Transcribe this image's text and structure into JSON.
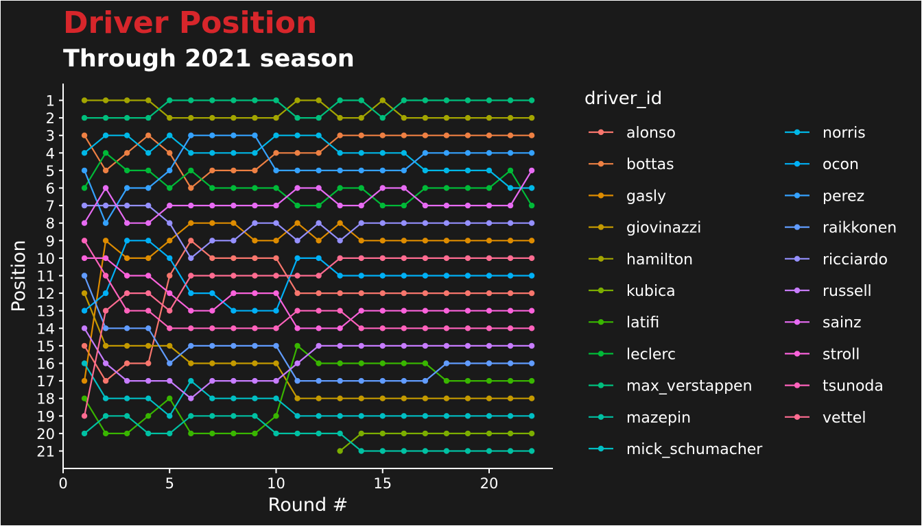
{
  "chart_data": {
    "type": "line",
    "title": "Driver Position",
    "subtitle": "Through 2021 season",
    "xlabel": "Round #",
    "ylabel": "Position",
    "xlim": [
      0,
      23
    ],
    "ylim": [
      21,
      1
    ],
    "x_ticks": [
      0,
      5,
      10,
      15,
      20
    ],
    "y_ticks": [
      1,
      2,
      3,
      4,
      5,
      6,
      7,
      8,
      9,
      10,
      11,
      12,
      13,
      14,
      15,
      16,
      17,
      18,
      19,
      20,
      21
    ],
    "y_reversed": true,
    "grid": false,
    "legend": {
      "title": "driver_id",
      "placement": "right",
      "columns": 2
    },
    "title_color": "#D7262B",
    "series": [
      {
        "name": "alonso",
        "color": "#F8766D",
        "x": [
          1,
          2,
          3,
          4,
          5,
          6,
          7,
          8,
          9,
          10,
          11,
          12,
          13,
          14,
          15,
          16,
          17,
          18,
          19,
          20,
          21,
          22
        ],
        "values": [
          15,
          17,
          16,
          16,
          11,
          9,
          10,
          10,
          10,
          10,
          12,
          12,
          12,
          12,
          12,
          12,
          12,
          12,
          12,
          12,
          12,
          12
        ]
      },
      {
        "name": "bottas",
        "color": "#EE8043",
        "x": [
          1,
          2,
          3,
          4,
          5,
          6,
          7,
          8,
          9,
          10,
          11,
          12,
          13,
          14,
          15,
          16,
          17,
          18,
          19,
          20,
          21,
          22
        ],
        "values": [
          3,
          5,
          4,
          3,
          4,
          6,
          5,
          5,
          5,
          4,
          4,
          4,
          3,
          3,
          3,
          3,
          3,
          3,
          3,
          3,
          3,
          3
        ]
      },
      {
        "name": "gasly",
        "color": "#DE8C00",
        "x": [
          1,
          2,
          3,
          4,
          5,
          6,
          7,
          8,
          9,
          10,
          11,
          12,
          13,
          14,
          15,
          16,
          17,
          18,
          19,
          20,
          21,
          22
        ],
        "values": [
          17,
          9,
          10,
          10,
          9,
          8,
          8,
          8,
          9,
          9,
          8,
          9,
          8,
          9,
          9,
          9,
          9,
          9,
          9,
          9,
          9,
          9
        ]
      },
      {
        "name": "giovinazzi",
        "color": "#C49A00",
        "x": [
          1,
          2,
          3,
          4,
          5,
          6,
          7,
          8,
          9,
          10,
          11,
          12,
          13,
          14,
          15,
          16,
          17,
          18,
          19,
          20,
          21,
          22
        ],
        "values": [
          12,
          15,
          15,
          15,
          15,
          16,
          16,
          16,
          16,
          16,
          18,
          18,
          18,
          18,
          18,
          18,
          18,
          18,
          18,
          18,
          18,
          18
        ]
      },
      {
        "name": "hamilton",
        "color": "#A3A500",
        "x": [
          1,
          2,
          3,
          4,
          5,
          6,
          7,
          8,
          9,
          10,
          11,
          12,
          13,
          14,
          15,
          16,
          17,
          18,
          19,
          20,
          21,
          22
        ],
        "values": [
          1,
          1,
          1,
          1,
          2,
          2,
          2,
          2,
          2,
          2,
          1,
          1,
          2,
          2,
          1,
          2,
          2,
          2,
          2,
          2,
          2,
          2
        ]
      },
      {
        "name": "kubica",
        "color": "#7CAE00",
        "x": [
          13,
          14,
          15,
          16,
          17,
          18,
          19,
          20,
          21,
          22
        ],
        "values": [
          21,
          20,
          20,
          20,
          20,
          20,
          20,
          20,
          20,
          20
        ]
      },
      {
        "name": "latifi",
        "color": "#39B600",
        "x": [
          1,
          2,
          3,
          4,
          5,
          6,
          7,
          8,
          9,
          10,
          11,
          12,
          13,
          14,
          15,
          16,
          17,
          18,
          19,
          20,
          21,
          22
        ],
        "values": [
          18,
          20,
          20,
          19,
          18,
          20,
          20,
          20,
          20,
          19,
          15,
          16,
          16,
          16,
          16,
          16,
          16,
          17,
          17,
          17,
          17,
          17
        ]
      },
      {
        "name": "leclerc",
        "color": "#00BA38",
        "x": [
          1,
          2,
          3,
          4,
          5,
          6,
          7,
          8,
          9,
          10,
          11,
          12,
          13,
          14,
          15,
          16,
          17,
          18,
          19,
          20,
          21,
          22
        ],
        "values": [
          6,
          4,
          5,
          5,
          6,
          5,
          6,
          6,
          6,
          6,
          7,
          7,
          6,
          6,
          7,
          7,
          6,
          6,
          6,
          6,
          5,
          7
        ]
      },
      {
        "name": "max_verstappen",
        "color": "#00BF7D",
        "x": [
          1,
          2,
          3,
          4,
          5,
          6,
          7,
          8,
          9,
          10,
          11,
          12,
          13,
          14,
          15,
          16,
          17,
          18,
          19,
          20,
          21,
          22
        ],
        "values": [
          2,
          2,
          2,
          2,
          1,
          1,
          1,
          1,
          1,
          1,
          2,
          2,
          1,
          1,
          2,
          1,
          1,
          1,
          1,
          1,
          1,
          1
        ]
      },
      {
        "name": "mazepin",
        "color": "#00C1A3",
        "x": [
          1,
          2,
          3,
          4,
          5,
          6,
          7,
          8,
          9,
          10,
          11,
          12,
          13,
          14,
          15,
          16,
          17,
          18,
          19,
          20,
          21,
          22
        ],
        "values": [
          20,
          19,
          19,
          20,
          20,
          19,
          19,
          19,
          19,
          20,
          20,
          20,
          20,
          21,
          21,
          21,
          21,
          21,
          21,
          21,
          21,
          21
        ]
      },
      {
        "name": "mick_schumacher",
        "color": "#00BFC4",
        "x": [
          1,
          2,
          3,
          4,
          5,
          6,
          7,
          8,
          9,
          10,
          11,
          12,
          13,
          14,
          15,
          16,
          17,
          18,
          19,
          20,
          21,
          22
        ],
        "values": [
          16,
          18,
          18,
          18,
          19,
          17,
          18,
          18,
          18,
          18,
          19,
          19,
          19,
          19,
          19,
          19,
          19,
          19,
          19,
          19,
          19,
          19
        ]
      },
      {
        "name": "norris",
        "color": "#00B8E7",
        "x": [
          1,
          2,
          3,
          4,
          5,
          6,
          7,
          8,
          9,
          10,
          11,
          12,
          13,
          14,
          15,
          16,
          17,
          18,
          19,
          20,
          21,
          22
        ],
        "values": [
          4,
          3,
          3,
          4,
          3,
          4,
          4,
          4,
          4,
          3,
          3,
          3,
          4,
          4,
          4,
          4,
          5,
          5,
          5,
          5,
          6,
          6
        ]
      },
      {
        "name": "ocon",
        "color": "#00B0F6",
        "x": [
          1,
          2,
          3,
          4,
          5,
          6,
          7,
          8,
          9,
          10,
          11,
          12,
          13,
          14,
          15,
          16,
          17,
          18,
          19,
          20,
          21,
          22
        ],
        "values": [
          13,
          12,
          9,
          9,
          10,
          12,
          12,
          13,
          13,
          13,
          10,
          10,
          11,
          11,
          11,
          11,
          11,
          11,
          11,
          11,
          11,
          11
        ]
      },
      {
        "name": "perez",
        "color": "#35A2FF",
        "x": [
          1,
          2,
          3,
          4,
          5,
          6,
          7,
          8,
          9,
          10,
          11,
          12,
          13,
          14,
          15,
          16,
          17,
          18,
          19,
          20,
          21,
          22
        ],
        "values": [
          5,
          8,
          6,
          6,
          5,
          3,
          3,
          3,
          3,
          5,
          5,
          5,
          5,
          5,
          5,
          5,
          4,
          4,
          4,
          4,
          4,
          4
        ]
      },
      {
        "name": "raikkonen",
        "color": "#619CFF",
        "x": [
          1,
          2,
          3,
          4,
          5,
          6,
          7,
          8,
          9,
          10,
          11,
          12,
          13,
          14,
          15,
          16,
          17,
          18,
          19,
          20,
          21,
          22
        ],
        "values": [
          11,
          14,
          14,
          14,
          16,
          15,
          15,
          15,
          15,
          15,
          17,
          17,
          17,
          17,
          17,
          17,
          17,
          16,
          16,
          16,
          16,
          16
        ]
      },
      {
        "name": "ricciardo",
        "color": "#9590FF",
        "x": [
          1,
          2,
          3,
          4,
          5,
          6,
          7,
          8,
          9,
          10,
          11,
          12,
          13,
          14,
          15,
          16,
          17,
          18,
          19,
          20,
          21,
          22
        ],
        "values": [
          7,
          7,
          7,
          7,
          8,
          10,
          9,
          9,
          8,
          8,
          9,
          8,
          9,
          8,
          8,
          8,
          8,
          8,
          8,
          8,
          8,
          8
        ]
      },
      {
        "name": "russell",
        "color": "#C77CFF",
        "x": [
          1,
          2,
          3,
          4,
          5,
          6,
          7,
          8,
          9,
          10,
          11,
          12,
          13,
          14,
          15,
          16,
          17,
          18,
          19,
          20,
          21,
          22
        ],
        "values": [
          14,
          16,
          17,
          17,
          17,
          18,
          17,
          17,
          17,
          17,
          16,
          15,
          15,
          15,
          15,
          15,
          15,
          15,
          15,
          15,
          15,
          15
        ]
      },
      {
        "name": "sainz",
        "color": "#E76BF3",
        "x": [
          1,
          2,
          3,
          4,
          5,
          6,
          7,
          8,
          9,
          10,
          11,
          12,
          13,
          14,
          15,
          16,
          17,
          18,
          19,
          20,
          21,
          22
        ],
        "values": [
          8,
          6,
          8,
          8,
          7,
          7,
          7,
          7,
          7,
          7,
          6,
          6,
          7,
          7,
          6,
          6,
          7,
          7,
          7,
          7,
          7,
          5
        ]
      },
      {
        "name": "stroll",
        "color": "#FA62DB",
        "x": [
          1,
          2,
          3,
          4,
          5,
          6,
          7,
          8,
          9,
          10,
          11,
          12,
          13,
          14,
          15,
          16,
          17,
          18,
          19,
          20,
          21,
          22
        ],
        "values": [
          10,
          10,
          11,
          11,
          12,
          13,
          13,
          12,
          12,
          12,
          14,
          14,
          14,
          13,
          13,
          13,
          13,
          13,
          13,
          13,
          13,
          13
        ]
      },
      {
        "name": "tsunoda",
        "color": "#FF62BC",
        "x": [
          1,
          2,
          3,
          4,
          5,
          6,
          7,
          8,
          9,
          10,
          11,
          12,
          13,
          14,
          15,
          16,
          17,
          18,
          19,
          20,
          21,
          22
        ],
        "values": [
          9,
          11,
          13,
          13,
          14,
          14,
          14,
          14,
          14,
          14,
          13,
          13,
          13,
          14,
          14,
          14,
          14,
          14,
          14,
          14,
          14,
          14
        ]
      },
      {
        "name": "vettel",
        "color": "#FF6C91",
        "x": [
          1,
          2,
          3,
          4,
          5,
          6,
          7,
          8,
          9,
          10,
          11,
          12,
          13,
          14,
          15,
          16,
          17,
          18,
          19,
          20,
          21,
          22
        ],
        "values": [
          19,
          13,
          12,
          12,
          13,
          11,
          11,
          11,
          11,
          11,
          11,
          11,
          10,
          10,
          10,
          10,
          10,
          10,
          10,
          10,
          10,
          10
        ]
      }
    ]
  }
}
